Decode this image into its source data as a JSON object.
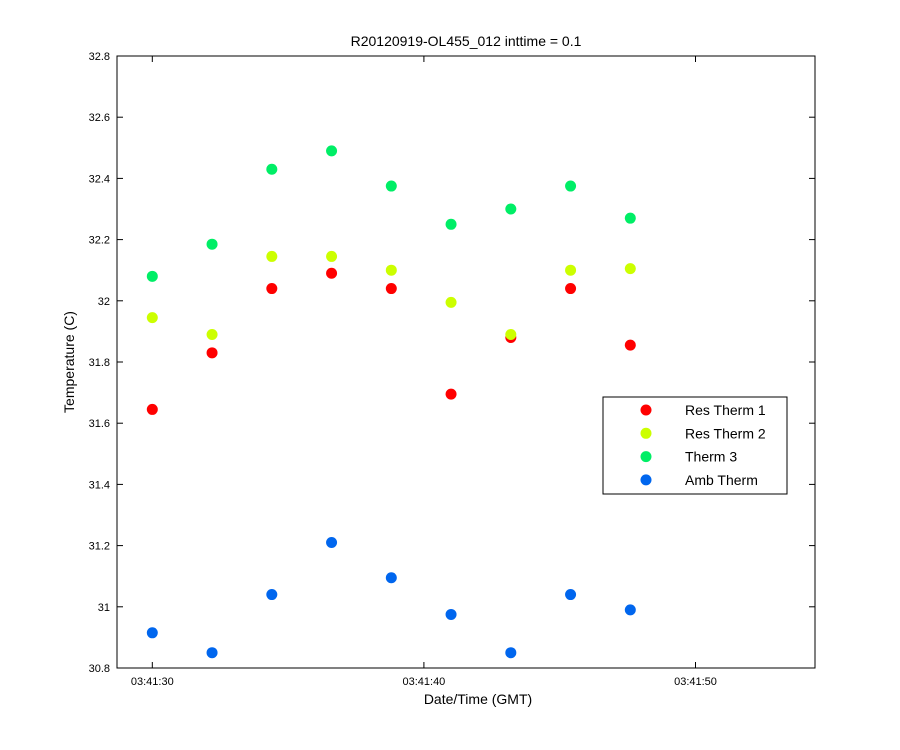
{
  "chart_data": {
    "type": "scatter",
    "title": "R20120919-OL455_012 inttime = 0.1",
    "xlabel": "Date/Time (GMT)",
    "ylabel": "Temperature (C)",
    "xlim": [
      "03:41:28.7",
      "03:41:54.4"
    ],
    "ylim": [
      30.8,
      32.8
    ],
    "x_tick_labels": [
      "03:41:30",
      "03:41:40",
      "03:41:50"
    ],
    "y_tick_labels": [
      "30.8",
      "31",
      "31.2",
      "31.4",
      "31.6",
      "31.8",
      "32",
      "32.2",
      "32.4",
      "32.6",
      "32.8"
    ],
    "legend_position": "right",
    "grid": false,
    "x": [
      "03:41:30.0",
      "03:41:32.2",
      "03:41:34.4",
      "03:41:36.6",
      "03:41:38.8",
      "03:41:41.0",
      "03:41:43.2",
      "03:41:45.4",
      "03:41:47.6"
    ],
    "series": [
      {
        "name": "Res Therm 1",
        "color": "#ff0000",
        "values": [
          31.645,
          31.83,
          32.04,
          32.09,
          32.04,
          31.695,
          31.88,
          32.04,
          31.855
        ]
      },
      {
        "name": "Res Therm 2",
        "color": "#ccff00",
        "values": [
          31.945,
          31.89,
          32.145,
          32.145,
          32.1,
          31.995,
          31.89,
          32.1,
          32.105
        ]
      },
      {
        "name": "Therm 3",
        "color": "#00ee66",
        "values": [
          32.08,
          32.185,
          32.43,
          32.49,
          32.375,
          32.25,
          32.3,
          32.375,
          32.27
        ]
      },
      {
        "name": "Amb Therm",
        "color": "#0066ee",
        "values": [
          30.915,
          30.85,
          31.04,
          31.21,
          31.095,
          30.975,
          30.85,
          31.04,
          30.99
        ]
      }
    ]
  }
}
